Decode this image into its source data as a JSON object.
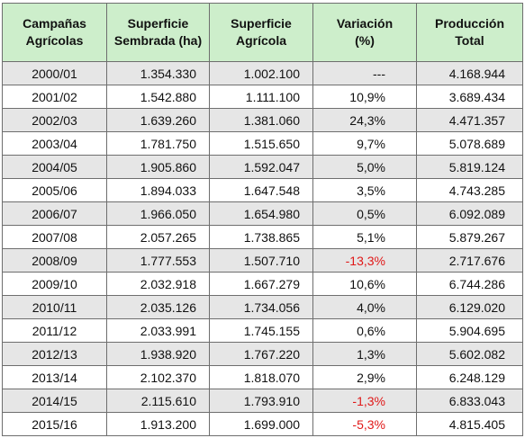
{
  "table": {
    "headers": [
      [
        "Campañas",
        "Agrícolas"
      ],
      [
        "Superficie",
        "Sembrada (ha)"
      ],
      [
        "Superficie",
        "Agrícola"
      ],
      [
        "Variación",
        "(%)"
      ],
      [
        "Producción",
        "Total"
      ]
    ],
    "rows": [
      {
        "campana": "2000/01",
        "sembrada": "1.354.330",
        "agricola": "1.002.100",
        "variacion": "---",
        "produccion": "4.168.944",
        "negative": false
      },
      {
        "campana": "2001/02",
        "sembrada": "1.542.880",
        "agricola": "1.111.100",
        "variacion": "10,9%",
        "produccion": "3.689.434",
        "negative": false
      },
      {
        "campana": "2002/03",
        "sembrada": "1.639.260",
        "agricola": "1.381.060",
        "variacion": "24,3%",
        "produccion": "4.471.357",
        "negative": false
      },
      {
        "campana": "2003/04",
        "sembrada": "1.781.750",
        "agricola": "1.515.650",
        "variacion": "9,7%",
        "produccion": "5.078.689",
        "negative": false
      },
      {
        "campana": "2004/05",
        "sembrada": "1.905.860",
        "agricola": "1.592.047",
        "variacion": "5,0%",
        "produccion": "5.819.124",
        "negative": false
      },
      {
        "campana": "2005/06",
        "sembrada": "1.894.033",
        "agricola": "1.647.548",
        "variacion": "3,5%",
        "produccion": "4.743.285",
        "negative": false
      },
      {
        "campana": "2006/07",
        "sembrada": "1.966.050",
        "agricola": "1.654.980",
        "variacion": "0,5%",
        "produccion": "6.092.089",
        "negative": false
      },
      {
        "campana": "2007/08",
        "sembrada": "2.057.265",
        "agricola": "1.738.865",
        "variacion": "5,1%",
        "produccion": "5.879.267",
        "negative": false
      },
      {
        "campana": "2008/09",
        "sembrada": "1.777.553",
        "agricola": "1.507.710",
        "variacion": "-13,3%",
        "produccion": "2.717.676",
        "negative": true
      },
      {
        "campana": "2009/10",
        "sembrada": "2.032.918",
        "agricola": "1.667.279",
        "variacion": "10,6%",
        "produccion": "6.744.286",
        "negative": false
      },
      {
        "campana": "2010/11",
        "sembrada": "2.035.126",
        "agricola": "1.734.056",
        "variacion": "4,0%",
        "produccion": "6.129.020",
        "negative": false
      },
      {
        "campana": "2011/12",
        "sembrada": "2.033.991",
        "agricola": "1.745.155",
        "variacion": "0,6%",
        "produccion": "5.904.695",
        "negative": false
      },
      {
        "campana": "2012/13",
        "sembrada": "1.938.920",
        "agricola": "1.767.220",
        "variacion": "1,3%",
        "produccion": "5.602.082",
        "negative": false
      },
      {
        "campana": "2013/14",
        "sembrada": "2.102.370",
        "agricola": "1.818.070",
        "variacion": "2,9%",
        "produccion": "6.248.129",
        "negative": false
      },
      {
        "campana": "2014/15",
        "sembrada": "2.115.610",
        "agricola": "1.793.910",
        "variacion": "-1,3%",
        "produccion": "6.833.043",
        "negative": true
      },
      {
        "campana": "2015/16",
        "sembrada": "1.913.200",
        "agricola": "1.699.000",
        "variacion": "-5,3%",
        "produccion": "4.815.405",
        "negative": true
      }
    ]
  },
  "colors": {
    "header_bg": "#cdeecb",
    "alt_row_bg": "#e6e6e6",
    "negative_text": "#e01818",
    "border": "#6e6e6e"
  }
}
